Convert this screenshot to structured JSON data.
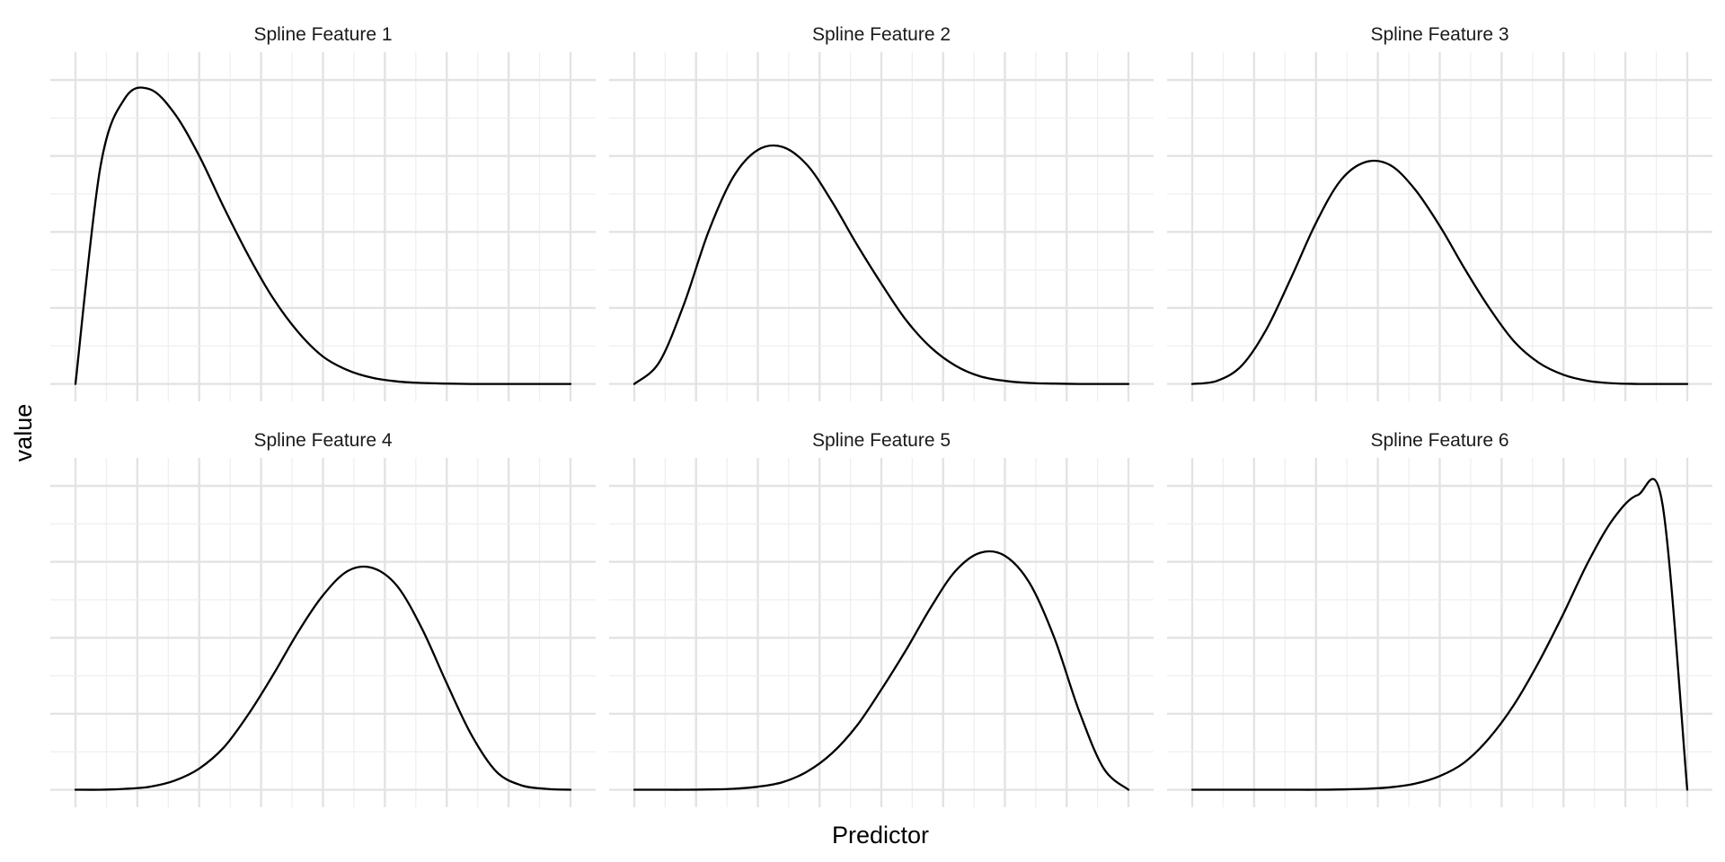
{
  "chart_data": {
    "type": "line",
    "layout": "facets 3x2",
    "xlabel": "Predictor",
    "ylabel": "value",
    "grid": true,
    "tick_labels_shown": false,
    "xlim": [
      0,
      1
    ],
    "ylim": [
      0,
      1
    ],
    "x": [
      0,
      0.05,
      0.1,
      0.15,
      0.2,
      0.25,
      0.3,
      0.35,
      0.4,
      0.45,
      0.5,
      0.55,
      0.6,
      0.65,
      0.7,
      0.75,
      0.8,
      0.85,
      0.9,
      0.95,
      1
    ],
    "panels": [
      {
        "title": "Spline Feature 1",
        "peak": 0.98,
        "values": [
          0.0,
          0.71,
          0.94,
          0.97,
          0.89,
          0.75,
          0.58,
          0.42,
          0.28,
          0.17,
          0.09,
          0.045,
          0.02,
          0.008,
          0.003,
          0.001,
          0.0,
          0.0,
          0.0,
          0.0,
          0.0
        ]
      },
      {
        "title": "Spline Feature 2",
        "peak": 0.79,
        "values": [
          0.0,
          0.07,
          0.26,
          0.5,
          0.68,
          0.77,
          0.78,
          0.72,
          0.6,
          0.46,
          0.33,
          0.21,
          0.12,
          0.06,
          0.025,
          0.01,
          0.003,
          0.001,
          0.0,
          0.0,
          0.0
        ]
      },
      {
        "title": "Spline Feature 3",
        "peak": 0.73,
        "values": [
          0.0,
          0.01,
          0.06,
          0.18,
          0.35,
          0.53,
          0.67,
          0.73,
          0.72,
          0.64,
          0.52,
          0.38,
          0.25,
          0.14,
          0.07,
          0.03,
          0.01,
          0.002,
          0.0,
          0.0,
          0.0
        ]
      },
      {
        "title": "Spline Feature 4",
        "peak": 0.73,
        "values": [
          0.0,
          0.0,
          0.003,
          0.01,
          0.03,
          0.07,
          0.14,
          0.25,
          0.38,
          0.52,
          0.64,
          0.72,
          0.73,
          0.67,
          0.53,
          0.35,
          0.18,
          0.06,
          0.015,
          0.003,
          0.0
        ]
      },
      {
        "title": "Spline Feature 5",
        "peak": 0.79,
        "values": [
          0.0,
          0.0,
          0.0,
          0.001,
          0.003,
          0.01,
          0.025,
          0.06,
          0.12,
          0.21,
          0.33,
          0.46,
          0.6,
          0.72,
          0.78,
          0.77,
          0.68,
          0.5,
          0.26,
          0.07,
          0.0
        ]
      },
      {
        "title": "Spline Feature 6",
        "peak": 0.98,
        "values": [
          0.0,
          0.0,
          0.0,
          0.0,
          0.0,
          0.0,
          0.001,
          0.003,
          0.008,
          0.02,
          0.045,
          0.09,
          0.17,
          0.28,
          0.42,
          0.58,
          0.75,
          0.89,
          0.97,
          0.94,
          0.0
        ]
      }
    ]
  }
}
